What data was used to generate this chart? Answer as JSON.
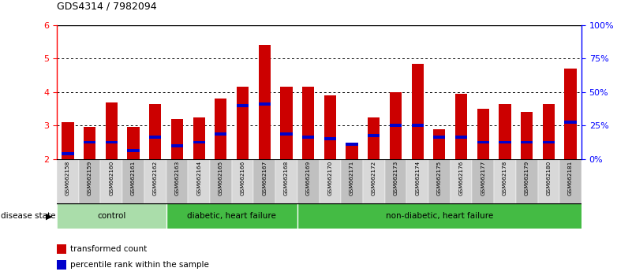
{
  "title": "GDS4314 / 7982094",
  "samples": [
    "GSM662158",
    "GSM662159",
    "GSM662160",
    "GSM662161",
    "GSM662162",
    "GSM662163",
    "GSM662164",
    "GSM662165",
    "GSM662166",
    "GSM662167",
    "GSM662168",
    "GSM662169",
    "GSM662170",
    "GSM662171",
    "GSM662172",
    "GSM662173",
    "GSM662174",
    "GSM662175",
    "GSM662176",
    "GSM662177",
    "GSM662178",
    "GSM662179",
    "GSM662180",
    "GSM662181"
  ],
  "red_values": [
    3.1,
    2.95,
    3.7,
    2.95,
    3.65,
    3.2,
    3.25,
    3.8,
    4.15,
    5.4,
    4.15,
    4.15,
    3.9,
    2.5,
    3.25,
    4.0,
    4.85,
    2.9,
    3.95,
    3.5,
    3.65,
    3.4,
    3.65,
    4.7
  ],
  "blue_values": [
    2.15,
    2.5,
    2.5,
    2.25,
    2.65,
    2.4,
    2.5,
    2.75,
    3.6,
    3.65,
    2.75,
    2.65,
    2.6,
    2.45,
    2.7,
    3.0,
    3.0,
    2.65,
    2.65,
    2.5,
    2.5,
    2.5,
    2.5,
    3.1
  ],
  "ylim": [
    2.0,
    6.0
  ],
  "yticks": [
    2,
    3,
    4,
    5,
    6
  ],
  "y2ticks": [
    0,
    25,
    50,
    75,
    100
  ],
  "y2labels": [
    "0%",
    "25%",
    "50%",
    "75%",
    "100%"
  ],
  "bar_width": 0.55,
  "bar_color_red": "#CC0000",
  "bar_color_blue": "#0000CC",
  "groups": [
    {
      "label": "control",
      "start": 0,
      "end": 5,
      "color": "#aaddaa"
    },
    {
      "label": "diabetic, heart failure",
      "start": 5,
      "end": 11,
      "color": "#44bb44"
    },
    {
      "label": "non-diabetic, heart failure",
      "start": 11,
      "end": 24,
      "color": "#44bb44"
    }
  ]
}
